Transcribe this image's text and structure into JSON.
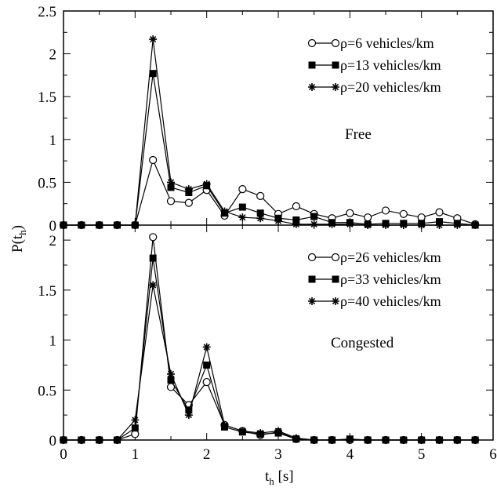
{
  "chart_data": {
    "type": "line",
    "xlabel": "t",
    "xlabel_sub": "h",
    "xlabel_unit": " [s]",
    "ylabel": "P(t",
    "ylabel_sub": "h",
    "ylabel_close": ")",
    "x": [
      0,
      0.25,
      0.5,
      0.75,
      1.0,
      1.25,
      1.5,
      1.75,
      2.0,
      2.25,
      2.5,
      2.75,
      3.0,
      3.25,
      3.5,
      3.75,
      4.0,
      4.25,
      4.5,
      4.75,
      5.0,
      5.25,
      5.5,
      5.75
    ],
    "xlim": [
      0,
      6
    ],
    "xticks": [
      "0",
      "1",
      "2",
      "3",
      "4",
      "5",
      "6"
    ],
    "panels": [
      {
        "annotation": "Free",
        "ylim": [
          0,
          2.5
        ],
        "yticks": [
          "0",
          "0.5",
          "1",
          "1.5",
          "2",
          "2.5"
        ],
        "legend_position": "top-right",
        "series": [
          {
            "name": "ρ=6 vehicles/km",
            "marker": "open-circle",
            "values": [
              0,
              0,
              0,
              0,
              0,
              0.76,
              0.28,
              0.26,
              0.41,
              0.11,
              0.42,
              0.34,
              0.13,
              0.22,
              0.13,
              0.08,
              0.14,
              0.09,
              0.17,
              0.13,
              0.09,
              0.15,
              0.08,
              0.01
            ]
          },
          {
            "name": "ρ=13 vehicles/km",
            "marker": "filled-square",
            "values": [
              0,
              0,
              0,
              0,
              0,
              1.77,
              0.44,
              0.38,
              0.46,
              0.14,
              0.21,
              0.14,
              0.08,
              0.06,
              0.1,
              0.03,
              0.03,
              0.01,
              0.02,
              0.02,
              0.02,
              0.04,
              0.02,
              0.0
            ]
          },
          {
            "name": "ρ=20 vehicles/km",
            "marker": "star",
            "values": [
              0,
              0,
              0,
              0,
              0,
              2.17,
              0.5,
              0.42,
              0.48,
              0.16,
              0.09,
              0.08,
              0.05,
              0.01,
              0.01,
              0.01,
              0.01,
              0.0,
              0.0,
              0.0,
              0.0,
              0.0,
              0.0,
              0.0
            ]
          }
        ]
      },
      {
        "annotation": "Congested",
        "ylim": [
          0,
          2.15
        ],
        "yticks": [
          "0",
          "0.5",
          "1",
          "1.5",
          "2"
        ],
        "legend_position": "top-right",
        "series": [
          {
            "name": "ρ=26 vehicles/km",
            "marker": "open-circle",
            "values": [
              0,
              0,
              0,
              0,
              0.06,
              2.03,
              0.53,
              0.35,
              0.58,
              0.15,
              0.09,
              0.05,
              0.08,
              0.01,
              0.0,
              0.0,
              0.0,
              0.0,
              0.0,
              0.0,
              0.0,
              0.0,
              0.0,
              0.0
            ]
          },
          {
            "name": "ρ=33 vehicles/km",
            "marker": "filled-square",
            "values": [
              0,
              0,
              0,
              0,
              0.12,
              1.82,
              0.6,
              0.3,
              0.75,
              0.13,
              0.08,
              0.06,
              0.07,
              0.01,
              0.0,
              0.0,
              0.01,
              0.0,
              0.0,
              0.0,
              0.0,
              0.0,
              0.0,
              0.0
            ]
          },
          {
            "name": "ρ=40 vehicles/km",
            "marker": "star",
            "values": [
              0,
              0,
              0,
              0,
              0.2,
              1.55,
              0.66,
              0.25,
              0.93,
              0.15,
              0.09,
              0.07,
              0.09,
              0.02,
              0.0,
              0.0,
              0.0,
              0.0,
              0.0,
              0.0,
              0.0,
              0.0,
              0.0,
              0.0
            ]
          }
        ]
      }
    ]
  }
}
